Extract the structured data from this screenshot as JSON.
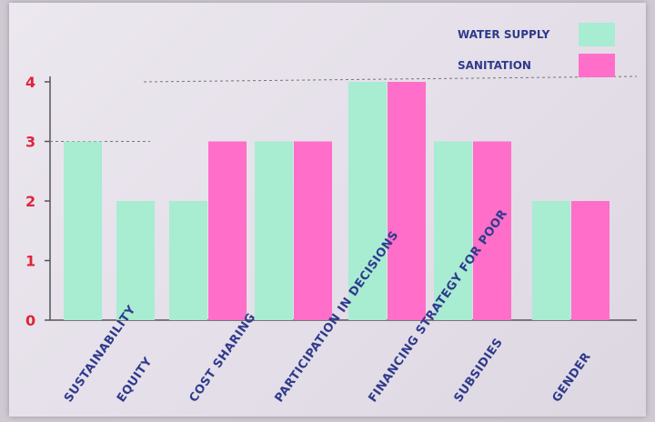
{
  "chart_data": {
    "type": "bar",
    "categories": [
      "SUSTAINABILITY",
      "EQUITY",
      "COST SHARING",
      "PARTICIPATION IN DECISIONS",
      "FINANCING STRATEGY FOR POOR",
      "SUBSIDIES",
      "GENDER"
    ],
    "series": [
      {
        "name": "WATER SUPPLY",
        "values": [
          3,
          2,
          2,
          3,
          4,
          3,
          2
        ],
        "color": "#a8ecd2"
      },
      {
        "name": "SANITATION",
        "values": [
          null,
          null,
          3,
          3,
          4,
          3,
          2
        ],
        "color": "#ff6ec8"
      }
    ],
    "yticks": [
      "0",
      "1",
      "2",
      "3",
      "4"
    ],
    "ylim": [
      0,
      4
    ],
    "legend": "top-right",
    "grid": false
  }
}
